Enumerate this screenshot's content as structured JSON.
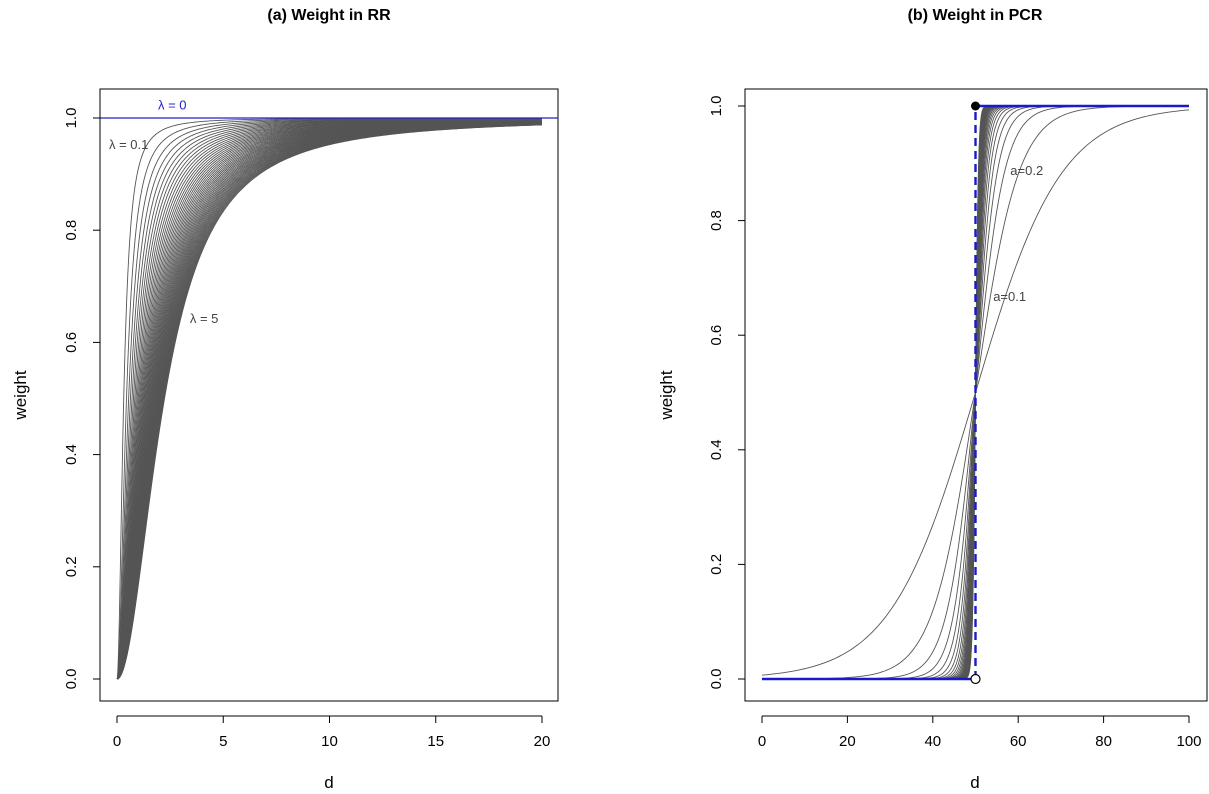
{
  "chart_data": [
    {
      "type": "line",
      "title": "(a) Weight in RR",
      "xlabel": "d",
      "ylabel": "weight",
      "xlim": [
        0,
        20
      ],
      "ylim": [
        0,
        1
      ],
      "x_ticks": [
        "0",
        "5",
        "10",
        "15",
        "20"
      ],
      "y_ticks": [
        "0.0",
        "0.2",
        "0.4",
        "0.6",
        "0.8",
        "1.0"
      ],
      "series_family": {
        "formula": "weight = d^2 / (d^2 + lambda)",
        "lambda_values": [
          0.1,
          0.2,
          0.3,
          0.4,
          0.5,
          0.6,
          0.7,
          0.8,
          0.9,
          1.0,
          1.1,
          1.2,
          1.3,
          1.4,
          1.5,
          1.6,
          1.7,
          1.8,
          1.9,
          2.0,
          2.1,
          2.2,
          2.3,
          2.4,
          2.5,
          2.6,
          2.7,
          2.8,
          2.9,
          3.0,
          3.1,
          3.2,
          3.3,
          3.4,
          3.5,
          3.6,
          3.7,
          3.8,
          3.9,
          4.0,
          4.1,
          4.2,
          4.3,
          4.4,
          4.5,
          4.6,
          4.7,
          4.8,
          4.9,
          5.0
        ],
        "x_range": [
          0,
          20
        ],
        "color": "#555555"
      },
      "reference_line": {
        "lambda": 0,
        "value": 1.0,
        "color": "#2222cc"
      },
      "annotations": [
        {
          "text": "λ = 0",
          "x": 2.6,
          "y": 1.015,
          "color": "#2222cc"
        },
        {
          "text": "λ = 0.1",
          "x": 0.55,
          "y": 0.945,
          "color": "#444444"
        },
        {
          "text": "λ = 5",
          "x": 4.1,
          "y": 0.635,
          "color": "#444444"
        }
      ]
    },
    {
      "type": "line",
      "title": "(b) Weight in PCR",
      "xlabel": "d",
      "ylabel": "weight",
      "xlim": [
        0,
        100
      ],
      "ylim": [
        0,
        1
      ],
      "x_ticks": [
        "0",
        "20",
        "40",
        "60",
        "80",
        "100"
      ],
      "y_ticks": [
        "0.0",
        "0.2",
        "0.4",
        "0.6",
        "0.8",
        "1.0"
      ],
      "series_family": {
        "formula": "weight = 1 / (1 + exp(-a (d - 50)))",
        "a_values": [
          0.1,
          0.2,
          0.3,
          0.4,
          0.5,
          0.6,
          0.7,
          0.8,
          0.9,
          1.0,
          1.1,
          1.2,
          1.3,
          1.4,
          1.5,
          1.6,
          1.7,
          1.8,
          1.9,
          2.0,
          2.1,
          2.2,
          2.3,
          2.4,
          2.5,
          2.6,
          2.7,
          2.8,
          2.9,
          3.0
        ],
        "x_range": [
          0,
          100
        ],
        "color": "#555555"
      },
      "step_function": {
        "threshold": 50,
        "low": 0,
        "high": 1,
        "color": "#1a1acc",
        "closed_point": [
          50,
          1
        ],
        "open_point": [
          50,
          0
        ]
      },
      "annotations": [
        {
          "text": "a=0.2",
          "x": 62,
          "y": 0.88,
          "color": "#444444"
        },
        {
          "text": "a=0.1",
          "x": 58,
          "y": 0.66,
          "color": "#444444"
        }
      ]
    }
  ]
}
